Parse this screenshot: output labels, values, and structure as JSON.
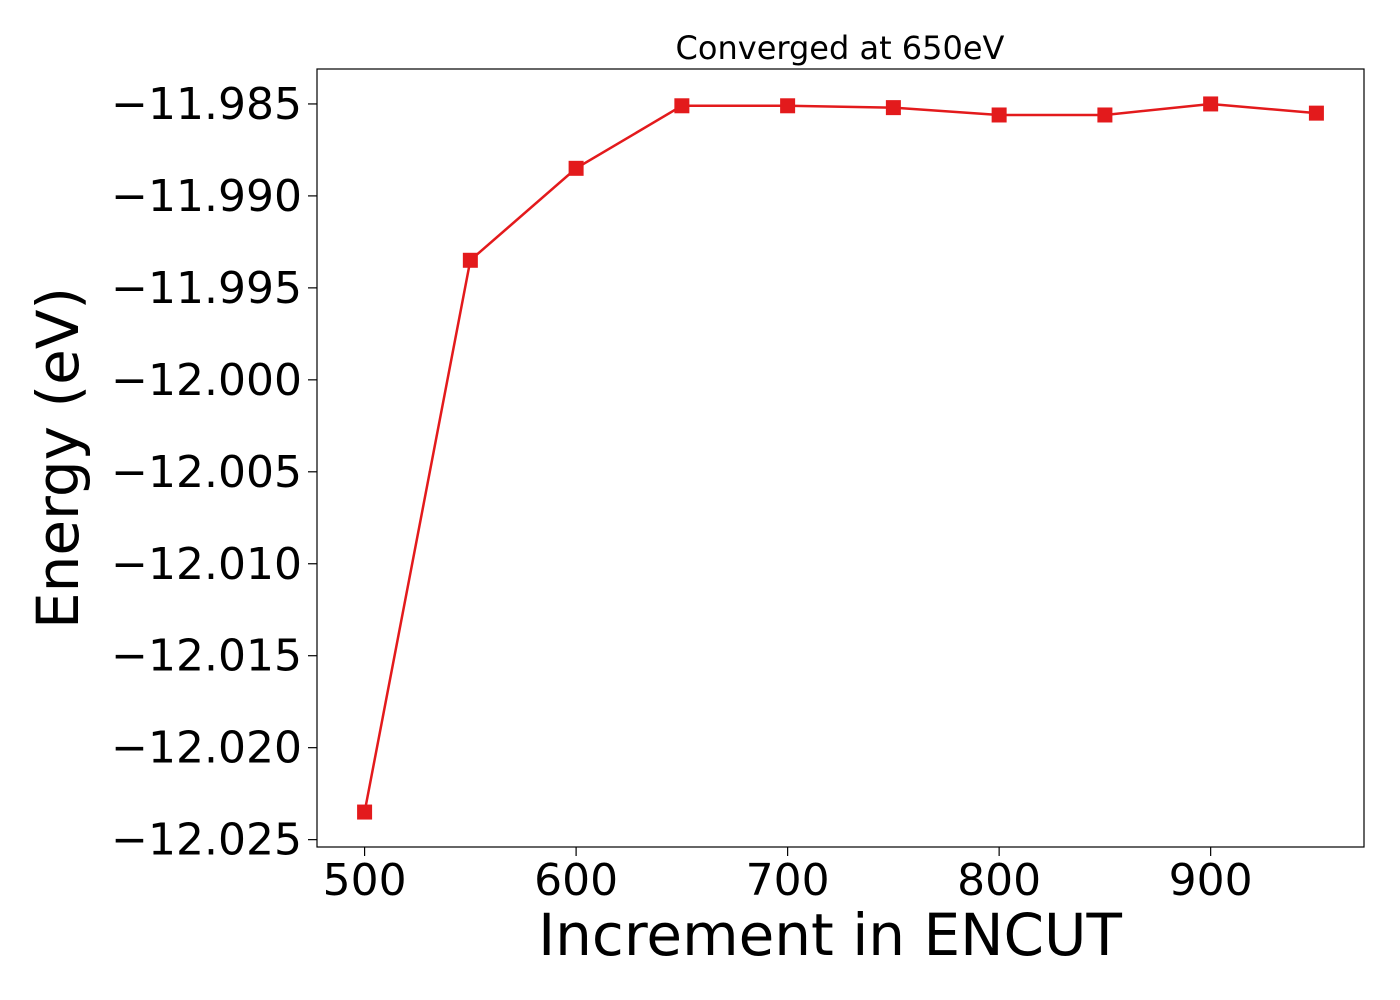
{
  "chart_data": {
    "type": "line",
    "title": "Converged at 650eV",
    "xlabel": "Increment in ENCUT",
    "ylabel": "Energy (eV)",
    "x": [
      500,
      550,
      600,
      650,
      700,
      750,
      800,
      850,
      900,
      950
    ],
    "series": [
      {
        "values": [
          -12.0235,
          -11.9935,
          -11.9885,
          -11.9851,
          -11.9851,
          -11.9852,
          -11.9856,
          -11.9856,
          -11.985,
          -11.9855
        ],
        "color": "#e31a1c",
        "marker": "square"
      }
    ],
    "xlim": [
      477.5,
      972.5
    ],
    "ylim": [
      -12.0254,
      -11.9831
    ],
    "xticks": [
      500,
      600,
      700,
      800,
      900
    ],
    "xtick_labels": [
      "500",
      "600",
      "700",
      "800",
      "900"
    ],
    "yticks": [
      -12.025,
      -12.02,
      -12.015,
      -12.01,
      -12.005,
      -12.0,
      -11.995,
      -11.99,
      -11.985
    ],
    "ytick_labels": [
      "−12.025",
      "−12.020",
      "−12.015",
      "−12.010",
      "−12.005",
      "−12.000",
      "−11.995",
      "−11.990",
      "−11.985"
    ],
    "grid": false,
    "legend": "none"
  }
}
